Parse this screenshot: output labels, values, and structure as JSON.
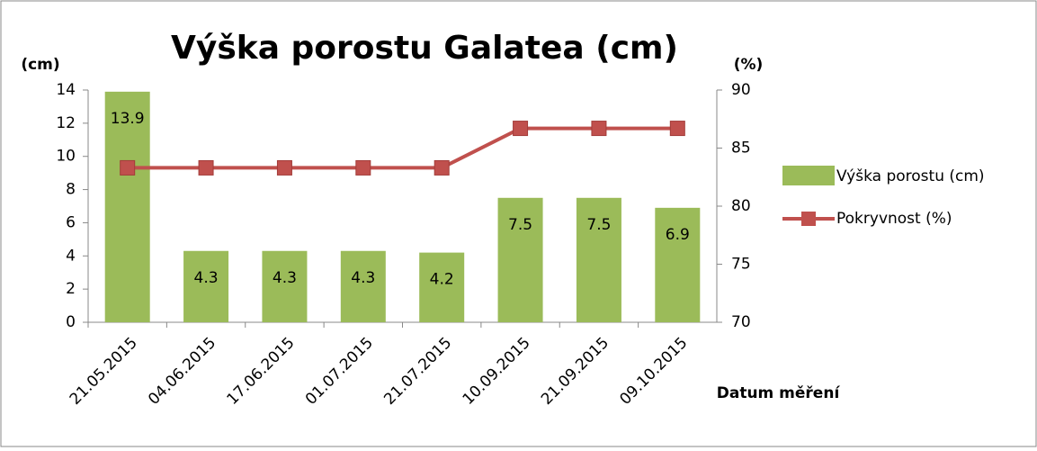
{
  "chart_data": {
    "type": "bar-line",
    "title": "Výška porostu Galatea (cm)",
    "y_label": "(cm)",
    "y2_label": "(%)",
    "x_label": "Datum měření",
    "categories": [
      "21.05.2015",
      "04.06.2015",
      "17.06.2015",
      "01.07.2015",
      "21.07.2015",
      "10.09.2015",
      "21.09.2015",
      "09.10.2015"
    ],
    "series": [
      {
        "name": "Výška porostu (cm)",
        "color": "#9bbb59",
        "values": [
          13.9,
          4.3,
          4.3,
          4.3,
          4.2,
          7.5,
          7.5,
          6.9
        ]
      },
      {
        "name": "Pokryvnost (%)",
        "color": "#c0504d",
        "axis": "y2",
        "values": [
          83.3,
          83.3,
          83.3,
          83.3,
          83.3,
          86.7,
          86.7,
          86.7
        ]
      }
    ],
    "ylim": [
      0,
      14
    ],
    "yticks": [
      0,
      2,
      4,
      6,
      8,
      10,
      12,
      14
    ],
    "y2lim": [
      70,
      90
    ],
    "y2ticks": [
      70,
      75,
      80,
      85,
      90
    ]
  }
}
